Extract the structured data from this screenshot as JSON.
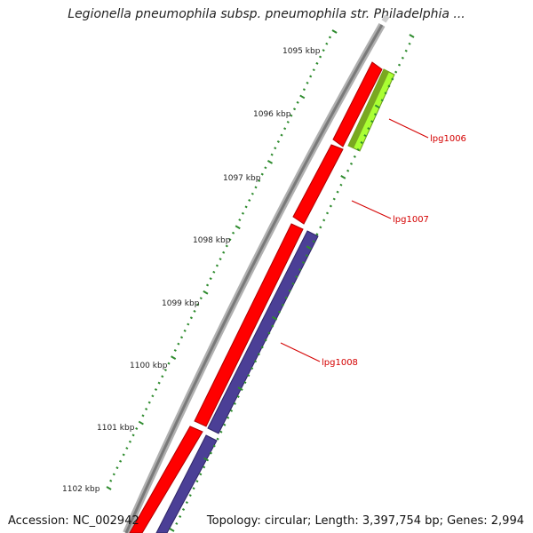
{
  "title": "Legionella pneumophila subsp. pneumophila str. Philadelphia ...",
  "footer": {
    "accession": "Accession: NC_002942",
    "summary": "Topology: circular; Length: 3,397,754 bp; Genes: 2,994"
  },
  "scale_labels": [
    "1095 kbp",
    "1096 kbp",
    "1097 kbp",
    "1098 kbp",
    "1099 kbp",
    "1100 kbp",
    "1101 kbp",
    "1102 kbp"
  ],
  "genes": [
    {
      "label": "lpg1006"
    },
    {
      "label": "lpg1007"
    },
    {
      "label": "lpg1008"
    }
  ],
  "colors": {
    "backbone": "#8a8a8a",
    "forward_gene": "#ff0000",
    "reverse_gene_1006": "#aaff33",
    "reverse_gene_1008": "#4b3f96",
    "tick": "#2e8b2e",
    "label": "#d40000"
  }
}
